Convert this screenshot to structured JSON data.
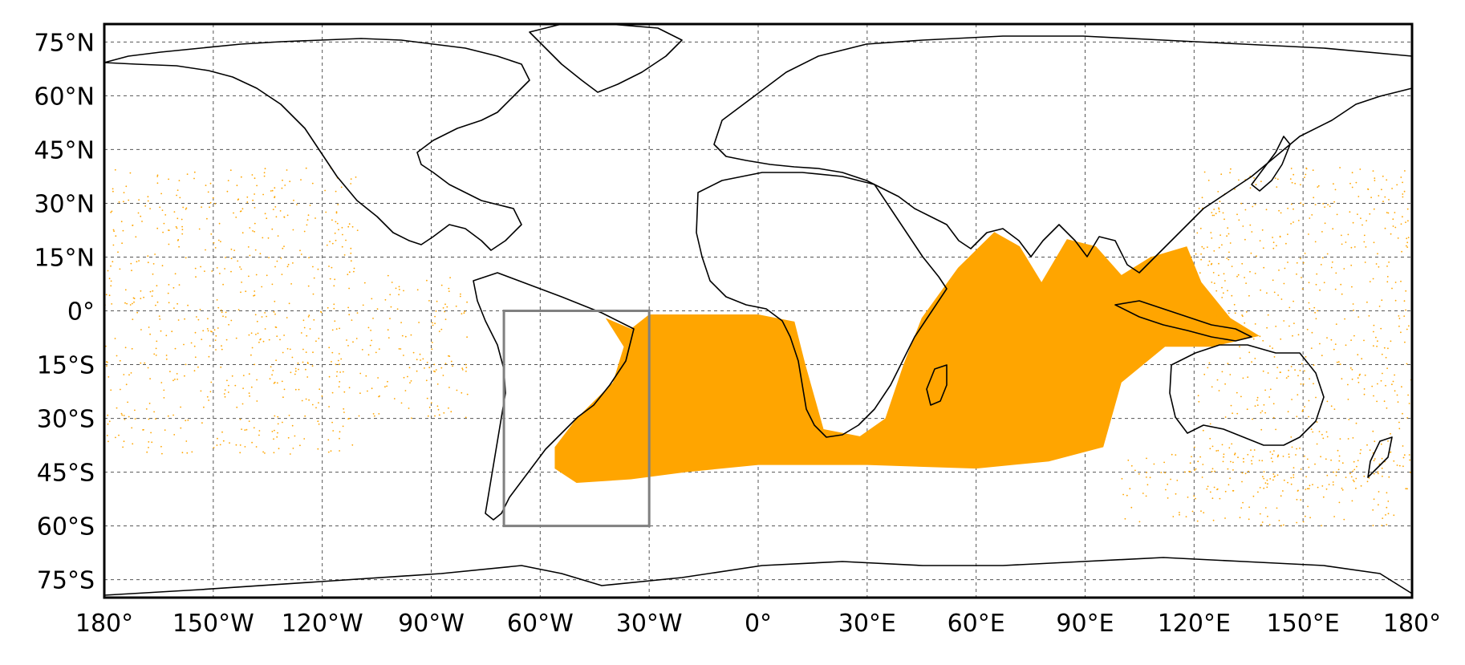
{
  "map": {
    "projection": "plate-carree",
    "extent": {
      "lon": [
        -180,
        180
      ],
      "lat": [
        -80,
        80
      ]
    },
    "gridlines": true,
    "lon_ticks": [
      {
        "value": -180,
        "label": "180°"
      },
      {
        "value": -150,
        "label": "150°W"
      },
      {
        "value": -120,
        "label": "120°W"
      },
      {
        "value": -90,
        "label": "90°W"
      },
      {
        "value": -60,
        "label": "60°W"
      },
      {
        "value": -30,
        "label": "30°W"
      },
      {
        "value": 0,
        "label": "0°"
      },
      {
        "value": 30,
        "label": "30°E"
      },
      {
        "value": 60,
        "label": "60°E"
      },
      {
        "value": 90,
        "label": "90°E"
      },
      {
        "value": 120,
        "label": "120°E"
      },
      {
        "value": 150,
        "label": "150°E"
      },
      {
        "value": 180,
        "label": "180°"
      }
    ],
    "lat_ticks": [
      {
        "value": 75,
        "label": "75°N"
      },
      {
        "value": 60,
        "label": "60°N"
      },
      {
        "value": 45,
        "label": "45°N"
      },
      {
        "value": 30,
        "label": "30°N"
      },
      {
        "value": 15,
        "label": "15°N"
      },
      {
        "value": 0,
        "label": "0°"
      },
      {
        "value": -15,
        "label": "15°S"
      },
      {
        "value": -30,
        "label": "30°S"
      },
      {
        "value": -45,
        "label": "45°S"
      },
      {
        "value": -60,
        "label": "60°S"
      },
      {
        "value": -75,
        "label": "75°S"
      }
    ],
    "release_region": {
      "lon": [
        -70,
        -30
      ],
      "lat": [
        -60,
        0
      ],
      "color": "#808080"
    },
    "particles": {
      "color": "#FFA500",
      "dense_region": [
        {
          "lon": -42,
          "lat": -2
        },
        {
          "lon": -35,
          "lat": -5
        },
        {
          "lon": -30,
          "lat": -1
        },
        {
          "lon": 0,
          "lat": -1
        },
        {
          "lon": 10,
          "lat": -3
        },
        {
          "lon": 13,
          "lat": -15
        },
        {
          "lon": 18,
          "lat": -33
        },
        {
          "lon": 28,
          "lat": -35
        },
        {
          "lon": 35,
          "lat": -30
        },
        {
          "lon": 40,
          "lat": -15
        },
        {
          "lon": 45,
          "lat": -2
        },
        {
          "lon": 55,
          "lat": 12
        },
        {
          "lon": 65,
          "lat": 22
        },
        {
          "lon": 72,
          "lat": 18
        },
        {
          "lon": 78,
          "lat": 8
        },
        {
          "lon": 85,
          "lat": 20
        },
        {
          "lon": 93,
          "lat": 18
        },
        {
          "lon": 100,
          "lat": 10
        },
        {
          "lon": 108,
          "lat": 15
        },
        {
          "lon": 118,
          "lat": 18
        },
        {
          "lon": 122,
          "lat": 8
        },
        {
          "lon": 130,
          "lat": -2
        },
        {
          "lon": 138,
          "lat": -7
        },
        {
          "lon": 125,
          "lat": -10
        },
        {
          "lon": 112,
          "lat": -10
        },
        {
          "lon": 100,
          "lat": -20
        },
        {
          "lon": 95,
          "lat": -38
        },
        {
          "lon": 80,
          "lat": -42
        },
        {
          "lon": 60,
          "lat": -44
        },
        {
          "lon": 30,
          "lat": -43
        },
        {
          "lon": 0,
          "lat": -43
        },
        {
          "lon": -20,
          "lat": -45
        },
        {
          "lon": -35,
          "lat": -47
        },
        {
          "lon": -50,
          "lat": -48
        },
        {
          "lon": -56,
          "lat": -44
        },
        {
          "lon": -56,
          "lat": -38
        },
        {
          "lon": -50,
          "lat": -30
        },
        {
          "lon": -40,
          "lat": -20
        },
        {
          "lon": -37,
          "lat": -10
        }
      ],
      "sparse_regions": [
        {
          "lon": [
            -180,
            -110
          ],
          "lat": [
            -40,
            40
          ]
        },
        {
          "lon": [
            -110,
            -80
          ],
          "lat": [
            -30,
            10
          ]
        },
        {
          "lon": [
            120,
            180
          ],
          "lat": [
            -50,
            40
          ]
        },
        {
          "lon": [
            100,
            175
          ],
          "lat": [
            -60,
            -40
          ]
        }
      ]
    }
  }
}
